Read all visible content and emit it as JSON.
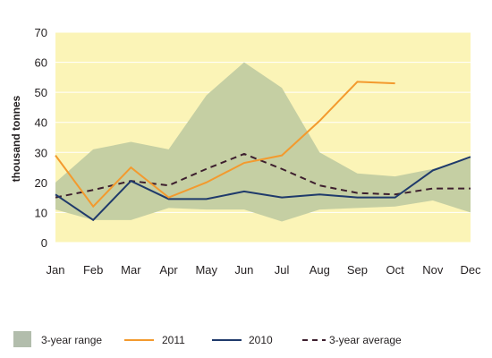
{
  "chart_data": {
    "type": "line",
    "ylabel": "thousand tonnes",
    "ylim": [
      0,
      70
    ],
    "yticks": [
      "0",
      "10",
      "20",
      "30",
      "40",
      "50",
      "60",
      "70"
    ],
    "categories": [
      "Jan",
      "Feb",
      "Mar",
      "Apr",
      "May",
      "Jun",
      "Jul",
      "Aug",
      "Sep",
      "Oct",
      "Nov",
      "Dec"
    ],
    "range": {
      "name": "3-year range",
      "upper": [
        20,
        31,
        33.5,
        31,
        49,
        60,
        51.5,
        30,
        23,
        22,
        24.5,
        28
      ],
      "lower": [
        11,
        7.5,
        7.5,
        11.5,
        11,
        11,
        7,
        11,
        11.5,
        12,
        14,
        10
      ]
    },
    "series": [
      {
        "name": "2011",
        "values": [
          29,
          12,
          25,
          15,
          20,
          26.5,
          29,
          40.5,
          53.5,
          53,
          null,
          null
        ]
      },
      {
        "name": "2010",
        "values": [
          16,
          7.5,
          20.5,
          14.5,
          14.5,
          17,
          15,
          16,
          15,
          15,
          24,
          28.5
        ]
      },
      {
        "name": "3-year average",
        "values": [
          15,
          17.5,
          20.5,
          19,
          24.5,
          29.5,
          24.5,
          19,
          16.5,
          16,
          18,
          18
        ]
      }
    ],
    "colors": {
      "plot_background": "#fbf4b7",
      "range": "#c5cfa3",
      "legend_range": "#b2bdac",
      "s2011": "#f39a2e",
      "s2010": "#1f3a6b",
      "avg": "#3d1f2e"
    },
    "grid": true,
    "legend": "bottom"
  }
}
